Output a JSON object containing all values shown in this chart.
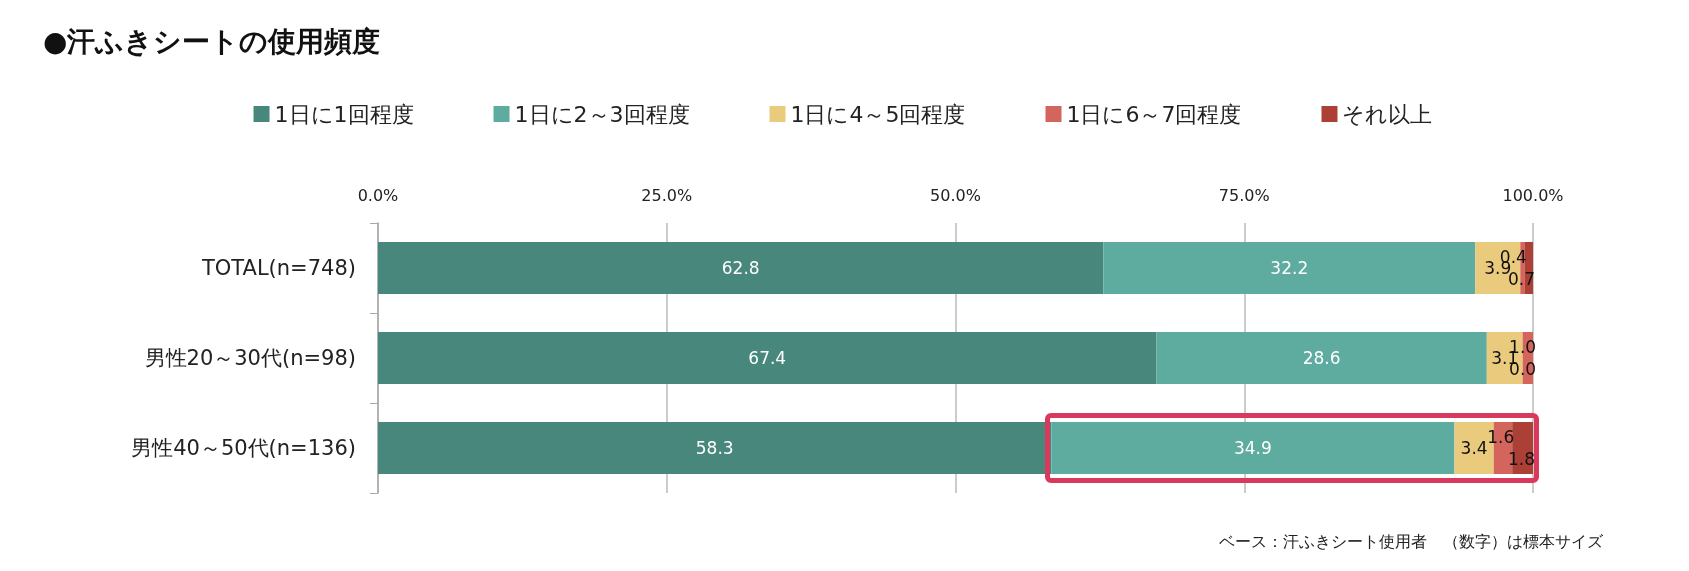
{
  "chart_data": {
    "type": "bar",
    "orientation": "horizontal",
    "stacked": true,
    "title": "●汗ふきシートの使用頻度",
    "categories": [
      "TOTAL(n=748)",
      "男性20～30代(n=98)",
      "男性40～50代(n=136)"
    ],
    "series": [
      {
        "name": "1日に1回程度",
        "color": "#48877c",
        "values": [
          62.8,
          67.4,
          58.3
        ],
        "value_labels": [
          "62.8",
          "67.4",
          "58.3"
        ]
      },
      {
        "name": "1日に2～3回程度",
        "color": "#5eab9f",
        "values": [
          32.2,
          28.6,
          34.9
        ],
        "value_labels": [
          "32.2",
          "28.6",
          "34.9"
        ]
      },
      {
        "name": "1日に4～5回程度",
        "color": "#eacb7e",
        "values": [
          3.9,
          3.1,
          3.4
        ],
        "value_labels": [
          "3.9",
          "3.1",
          "3.4"
        ]
      },
      {
        "name": "1日に6～7回程度",
        "color": "#d4655c",
        "values": [
          0.4,
          1.0,
          1.6
        ],
        "value_labels": [
          "0.4",
          "1.0",
          "1.6"
        ]
      },
      {
        "name": "それ以上",
        "color": "#ad4036",
        "values": [
          0.7,
          0.0,
          1.8
        ],
        "value_labels": [
          "0.7",
          "0.0",
          "1.8"
        ]
      }
    ],
    "xlim": [
      0,
      100
    ],
    "xticks": [
      {
        "value": 0,
        "label": "0.0%"
      },
      {
        "value": 25,
        "label": "25.0%"
      },
      {
        "value": 50,
        "label": "50.0%"
      },
      {
        "value": 75,
        "label": "75.0%"
      },
      {
        "value": 100,
        "label": "100.0%"
      }
    ],
    "grid": "x",
    "legend": "top",
    "annotations": [
      "ベース：汗ふきシート使用者　（数字）は標本サイズ"
    ]
  }
}
